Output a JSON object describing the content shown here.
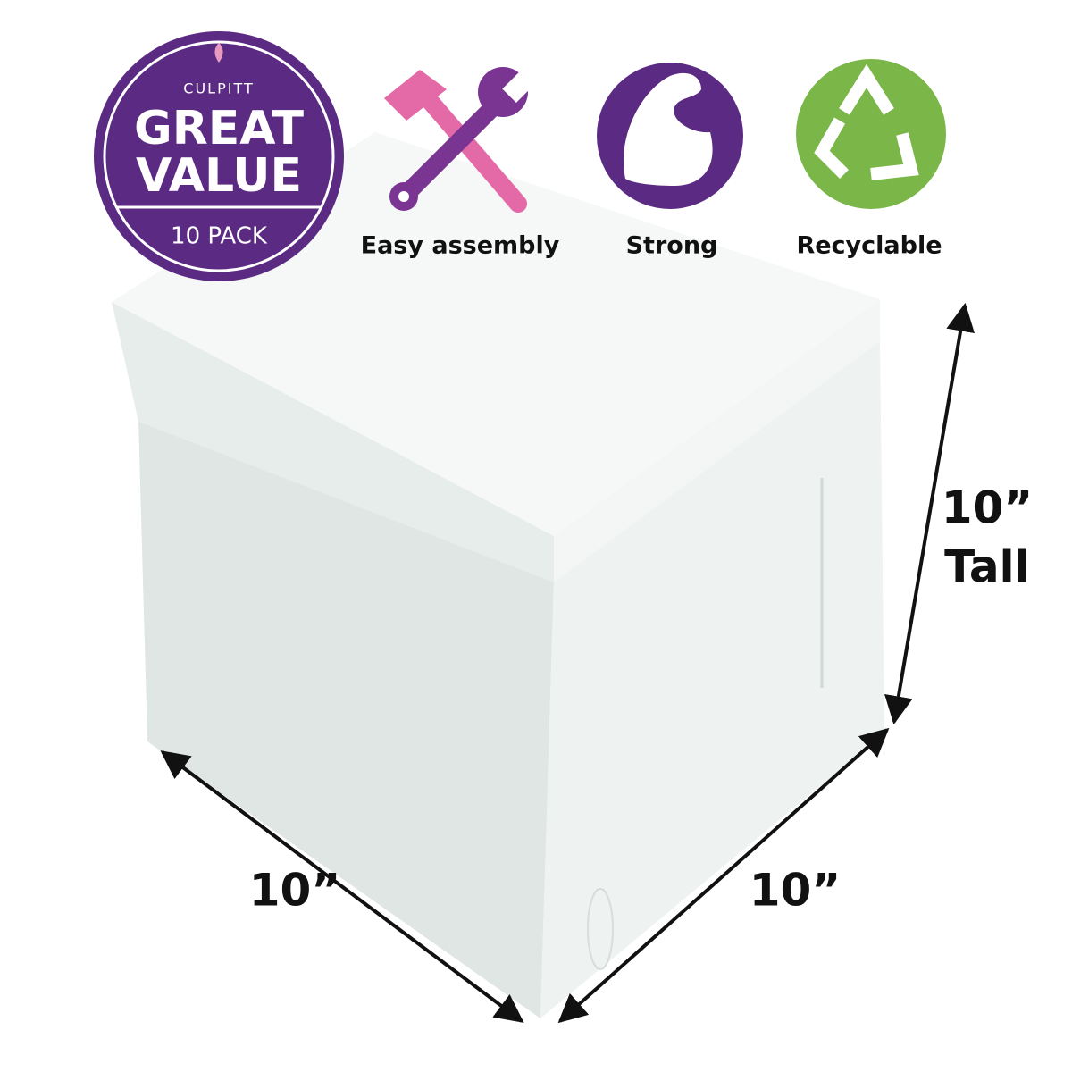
{
  "badge": {
    "brand": "CULPITT",
    "line1": "GREAT",
    "line2": "VALUE",
    "pack": "10 PACK"
  },
  "features": [
    {
      "label": "Easy assembly"
    },
    {
      "label": "Strong"
    },
    {
      "label": "Recyclable"
    }
  ],
  "dimensions": {
    "height": {
      "value": "10”",
      "label": "Tall"
    },
    "width": "10”",
    "depth": "10”"
  }
}
